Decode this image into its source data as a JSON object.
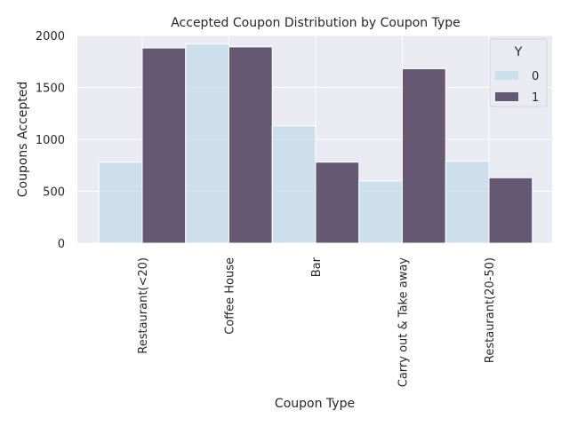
{
  "chart_data": {
    "type": "bar",
    "title": "Accepted Coupon Distribution by Coupon Type",
    "xlabel": "Coupon Type",
    "ylabel": "Coupons Accepted",
    "categories": [
      "Restaurant(<20)",
      "Coffee House",
      "Bar",
      "Carry out & Take away",
      "Restaurant(20-50)"
    ],
    "series": [
      {
        "name": "0",
        "values": [
          780,
          1920,
          1130,
          600,
          790
        ],
        "color": "#c6dcea"
      },
      {
        "name": "1",
        "values": [
          1880,
          1890,
          780,
          1680,
          630
        ],
        "color": "#4c3e5c"
      }
    ],
    "ylim": [
      0,
      2000
    ],
    "yticks": [
      0,
      500,
      1000,
      1500,
      2000
    ],
    "legend": {
      "title": "Y",
      "position": "top-right"
    },
    "grid": true,
    "background": "#eaeaf2"
  }
}
